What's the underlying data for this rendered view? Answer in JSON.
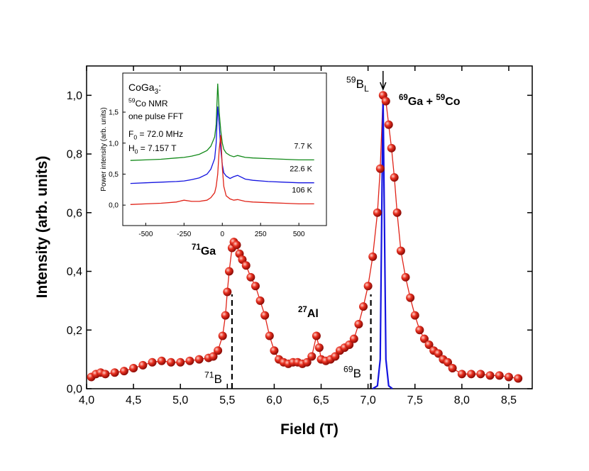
{
  "chart_data": [
    {
      "type": "scatter",
      "xlabel": "Field  (T)",
      "ylabel": "Intensity  (arb. units)",
      "xlim": [
        4.0,
        8.75
      ],
      "ylim": [
        0,
        1.1
      ],
      "xticks": [
        {
          "value": 4.0,
          "label": "4,0"
        },
        {
          "value": 4.5,
          "label": "4,5"
        },
        {
          "value": 5.0,
          "label": "5,0"
        },
        {
          "value": 5.5,
          "label": "5,5"
        },
        {
          "value": 6.0,
          "label": "6,0"
        },
        {
          "value": 6.5,
          "label": "6,5"
        },
        {
          "value": 7.0,
          "label": "7,0"
        },
        {
          "value": 7.5,
          "label": "7,5"
        },
        {
          "value": 8.0,
          "label": "8,0"
        },
        {
          "value": 8.5,
          "label": "8,5"
        }
      ],
      "yticks": [
        {
          "value": 0,
          "label": "0,0"
        },
        {
          "value": 0.2,
          "label": "0,2"
        },
        {
          "value": 0.4,
          "label": "0,4"
        },
        {
          "value": 0.6,
          "label": "0,6"
        },
        {
          "value": 0.8,
          "label": "0,8"
        },
        {
          "value": 1.0,
          "label": "1,0"
        }
      ],
      "series": [
        {
          "color": "#e02318",
          "marker": "sphere",
          "x": [
            4.05,
            4.1,
            4.15,
            4.2,
            4.3,
            4.4,
            4.5,
            4.6,
            4.7,
            4.8,
            4.9,
            5.0,
            5.1,
            5.2,
            5.3,
            5.35,
            5.4,
            5.45,
            5.48,
            5.5,
            5.52,
            5.55,
            5.57,
            5.6,
            5.63,
            5.66,
            5.7,
            5.75,
            5.8,
            5.85,
            5.9,
            5.95,
            6.0,
            6.05,
            6.1,
            6.15,
            6.2,
            6.25,
            6.3,
            6.35,
            6.4,
            6.45,
            6.48,
            6.5,
            6.55,
            6.6,
            6.65,
            6.7,
            6.75,
            6.8,
            6.85,
            6.9,
            6.95,
            7.0,
            7.05,
            7.1,
            7.13,
            7.16,
            7.19,
            7.22,
            7.25,
            7.28,
            7.31,
            7.35,
            7.4,
            7.45,
            7.5,
            7.55,
            7.6,
            7.65,
            7.7,
            7.75,
            7.8,
            7.85,
            7.9,
            8.0,
            8.1,
            8.2,
            8.3,
            8.4,
            8.5,
            8.6
          ],
          "values": [
            0.04,
            0.05,
            0.055,
            0.05,
            0.055,
            0.06,
            0.07,
            0.08,
            0.09,
            0.095,
            0.09,
            0.09,
            0.095,
            0.1,
            0.105,
            0.11,
            0.13,
            0.18,
            0.25,
            0.33,
            0.4,
            0.48,
            0.5,
            0.49,
            0.46,
            0.44,
            0.42,
            0.38,
            0.35,
            0.3,
            0.25,
            0.18,
            0.13,
            0.1,
            0.09,
            0.085,
            0.09,
            0.09,
            0.085,
            0.09,
            0.11,
            0.18,
            0.14,
            0.1,
            0.095,
            0.1,
            0.11,
            0.13,
            0.14,
            0.15,
            0.17,
            0.22,
            0.28,
            0.35,
            0.45,
            0.6,
            0.75,
            1.0,
            0.98,
            0.9,
            0.82,
            0.72,
            0.6,
            0.47,
            0.38,
            0.31,
            0.25,
            0.2,
            0.17,
            0.15,
            0.13,
            0.12,
            0.1,
            0.09,
            0.07,
            0.05,
            0.05,
            0.05,
            0.045,
            0.045,
            0.04,
            0.035
          ]
        },
        {
          "color": "#1414e0",
          "marker": "none",
          "x": [
            7.05,
            7.1,
            7.13,
            7.15,
            7.16,
            7.17,
            7.19,
            7.22,
            7.26
          ],
          "values": [
            0,
            0.01,
            0.1,
            0.72,
            1.0,
            0.7,
            0.1,
            0.01,
            0
          ]
        }
      ],
      "annotations": [
        {
          "parts": [
            [
              "sup",
              "71"
            ],
            [
              "main",
              "Ga"
            ]
          ],
          "bold": true
        },
        {
          "parts": [
            [
              "sup",
              "27"
            ],
            [
              "main",
              "Al"
            ]
          ],
          "bold": true
        },
        {
          "parts": [
            [
              "sup",
              "59"
            ],
            [
              "main",
              "B"
            ],
            [
              "sub",
              "L"
            ]
          ],
          "bold": false
        },
        {
          "parts": [
            [
              "sup",
              "69"
            ],
            [
              "main",
              "Ga + "
            ],
            [
              "sup",
              "59"
            ],
            [
              "main",
              "Co"
            ]
          ],
          "bold": true
        },
        {
          "parts": [
            [
              "sup",
              "71"
            ],
            [
              "main",
              "B"
            ]
          ],
          "bold": false
        },
        {
          "parts": [
            [
              "sup",
              "69"
            ],
            [
              "main",
              "B"
            ]
          ],
          "bold": false
        }
      ],
      "markers": [
        5.55,
        7.03
      ],
      "arrow_x": 7.16
    },
    {
      "type": "line",
      "ylabel": "Power intensity (arb. units)",
      "xlim": [
        -650,
        680
      ],
      "ylim": [
        -0.33,
        2.13
      ],
      "xticks": [
        -500,
        -250,
        0,
        250,
        500
      ],
      "yticks": [
        {
          "value": 0,
          "label": "0,0"
        },
        {
          "value": 0.5,
          "label": "0,5"
        },
        {
          "value": 1.0,
          "label": "1,0"
        },
        {
          "value": 1.5,
          "label": "1,5"
        }
      ],
      "text_block": [
        [
          [
            "main",
            "CoGa"
          ],
          [
            "sub",
            "3"
          ],
          [
            "main",
            ":"
          ]
        ],
        [
          [
            "sup",
            "59"
          ],
          [
            "main",
            "Co NMR"
          ]
        ],
        [
          [
            "main",
            "one pulse FFT"
          ]
        ],
        [
          [
            "main",
            "F"
          ],
          [
            "sub",
            "0"
          ],
          [
            "main",
            " = 72.0 MHz"
          ]
        ],
        [
          [
            "main",
            "H"
          ],
          [
            "sub",
            "0"
          ],
          [
            "main",
            " = 7.157 T"
          ]
        ]
      ],
      "x": [
        -600,
        -500,
        -400,
        -300,
        -250,
        -200,
        -150,
        -100,
        -75,
        -50,
        -40,
        -30,
        -20,
        -10,
        0,
        10,
        25,
        50,
        75,
        100,
        150,
        200,
        300,
        400,
        500,
        600
      ],
      "series": [
        {
          "name": "7.7 K",
          "color": "#138a1a",
          "values": [
            0.72,
            0.73,
            0.74,
            0.76,
            0.77,
            0.79,
            0.82,
            0.88,
            0.95,
            1.1,
            1.3,
            1.96,
            1.5,
            1.2,
            1.0,
            0.9,
            0.84,
            0.8,
            0.78,
            0.8,
            0.77,
            0.76,
            0.75,
            0.74,
            0.73,
            0.73
          ]
        },
        {
          "name": "22.6 K",
          "color": "#1414e0",
          "values": [
            0.35,
            0.36,
            0.37,
            0.38,
            0.39,
            0.41,
            0.44,
            0.5,
            0.58,
            0.75,
            1.0,
            1.59,
            1.3,
            0.9,
            0.65,
            0.52,
            0.47,
            0.43,
            0.46,
            0.48,
            0.42,
            0.4,
            0.38,
            0.37,
            0.36,
            0.36
          ]
        },
        {
          "name": "106 K",
          "color": "#e02318",
          "values": [
            0.01,
            0.02,
            0.03,
            0.05,
            0.08,
            0.06,
            0.06,
            0.08,
            0.12,
            0.2,
            0.3,
            0.5,
            0.9,
            1.13,
            0.6,
            0.3,
            0.15,
            0.1,
            0.08,
            0.09,
            0.06,
            0.05,
            0.04,
            0.03,
            0.02,
            0.02
          ]
        }
      ]
    }
  ]
}
